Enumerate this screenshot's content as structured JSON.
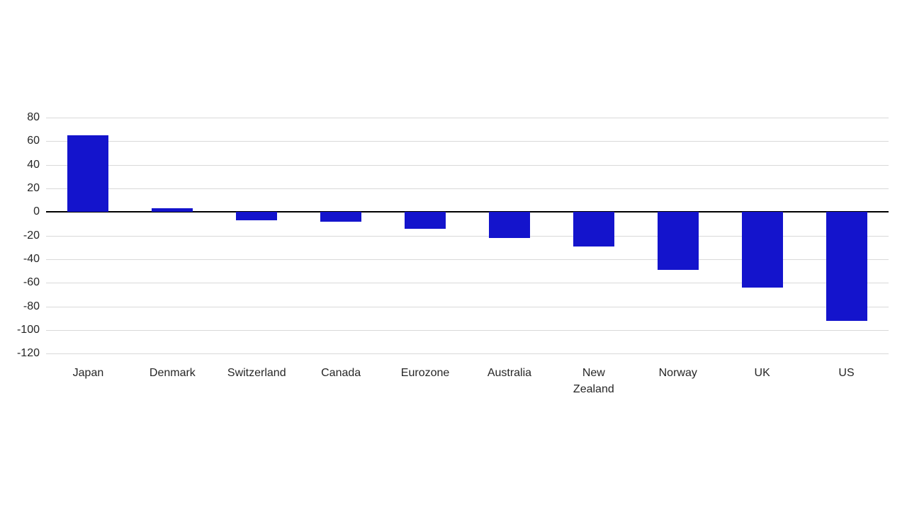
{
  "chart_data": {
    "type": "bar",
    "title": "",
    "xlabel": "",
    "ylabel": "",
    "categories": [
      "Japan",
      "Denmark",
      "Switzerland",
      "Canada",
      "Eurozone",
      "Australia",
      "New Zealand",
      "Norway",
      "UK",
      "US"
    ],
    "values": [
      65,
      3,
      -7,
      -8,
      -14,
      -22,
      -29,
      -49,
      -64,
      -92
    ],
    "ylim": [
      -120,
      80
    ],
    "yticks": [
      80,
      60,
      40,
      20,
      0,
      -20,
      -40,
      -60,
      -80,
      -100,
      -120
    ],
    "grid": "horizontal",
    "legend": "none",
    "bar_color": "#1414CC",
    "gridline_color": "#d9d9d9",
    "zero_axis_color": "#000000",
    "text_color": "#262626"
  }
}
